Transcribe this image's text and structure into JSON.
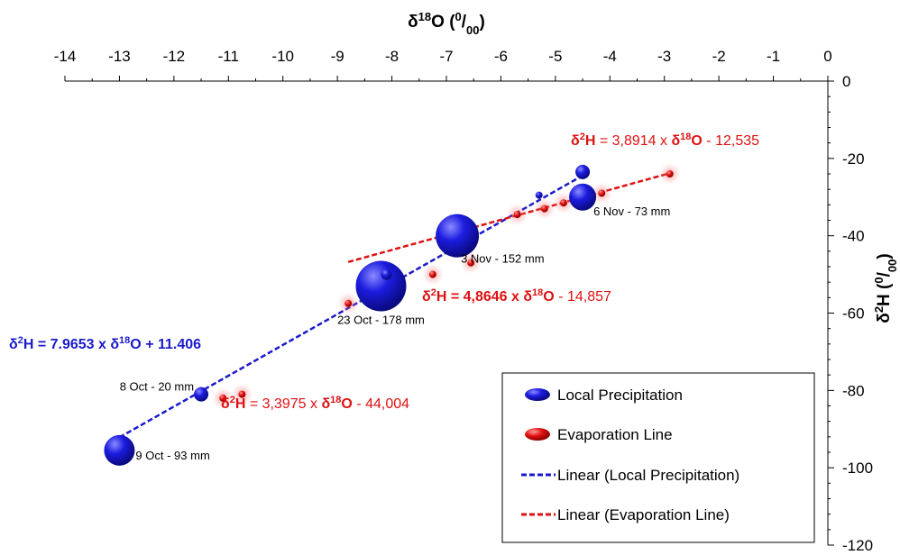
{
  "chart_data": {
    "type": "scatter",
    "x_axis": {
      "label_base": "δ",
      "label_sup": "18",
      "label_main": "O (",
      "label_unit_sup": "0",
      "label_slash": "/",
      "label_unit_sub": "00",
      "label_close": ")",
      "range": [
        -14,
        0
      ],
      "ticks": [
        -14,
        -13,
        -12,
        -11,
        -10,
        -9,
        -8,
        -7,
        -6,
        -5,
        -4,
        -3,
        -2,
        -1,
        0
      ]
    },
    "y_axis": {
      "label_base": "δ",
      "label_sup": "2",
      "label_main": "H (",
      "label_unit_sup": "0",
      "label_slash": "/",
      "label_unit_sub": "00",
      "label_close": ")",
      "range": [
        -120,
        0
      ],
      "ticks": [
        0,
        -20,
        -40,
        -60,
        -80,
        -100,
        -120
      ]
    },
    "series": [
      {
        "name": "Local Precipitation",
        "color": "#1a1acc",
        "points": [
          {
            "x": -13.0,
            "y": -95.5,
            "r": 17
          },
          {
            "x": -11.5,
            "y": -81.0,
            "r": 8
          },
          {
            "x": -8.2,
            "y": -53.0,
            "r": 28
          },
          {
            "x": -8.1,
            "y": -50.0,
            "r": 6
          },
          {
            "x": -6.8,
            "y": -40.0,
            "r": 24
          },
          {
            "x": -5.3,
            "y": -29.5,
            "r": 4
          },
          {
            "x": -4.5,
            "y": -30.0,
            "r": 15
          },
          {
            "x": -4.5,
            "y": -23.5,
            "r": 8
          }
        ]
      },
      {
        "name": "Evaporation Line",
        "color": "#dd1111",
        "points": [
          {
            "x": -11.1,
            "y": -82.0
          },
          {
            "x": -10.75,
            "y": -81.0
          },
          {
            "x": -8.8,
            "y": -57.5
          },
          {
            "x": -8.0,
            "y": -53.5
          },
          {
            "x": -7.25,
            "y": -50.0
          },
          {
            "x": -6.55,
            "y": -47.0
          },
          {
            "x": -5.7,
            "y": -34.5
          },
          {
            "x": -5.2,
            "y": -33.0
          },
          {
            "x": -4.85,
            "y": -31.5
          },
          {
            "x": -4.15,
            "y": -29.0
          },
          {
            "x": -2.9,
            "y": -24.0
          }
        ]
      }
    ],
    "trendlines": [
      {
        "name": "Linear (Local Precipitation)",
        "color": "#1a1acc",
        "x": [
          -13.0,
          -4.5
        ],
        "slope": 7.9653,
        "intercept": 11.406
      },
      {
        "name": "Linear (Evaporation Line)",
        "color": "#dd1111",
        "x": [
          -8.8,
          -2.9
        ],
        "slope": 3.8914,
        "intercept": -12.535
      }
    ],
    "point_labels": [
      {
        "text": "9 Oct - 93 mm",
        "x": -13.0,
        "y": -95.5
      },
      {
        "text": "8 Oct - 20 mm",
        "x": -11.5,
        "y": -81.0
      },
      {
        "text": "23 Oct - 178 mm",
        "x": -8.2,
        "y": -53.0
      },
      {
        "text": "3 Nov - 152 mm",
        "x": -6.8,
        "y": -40.0
      },
      {
        "text": "6 Nov - 73 mm",
        "x": -4.5,
        "y": -30.0
      }
    ],
    "equations": [
      {
        "lhs": "δ²H = 7.9653 x δ¹⁸O + 11.406",
        "color": "#1a1acc",
        "bold": true
      },
      {
        "lhs_bold": "δ²H",
        "rest": " = 3,8914 x ",
        "mid_bold": "δ¹⁸O",
        "tail": " - 12,535",
        "color": "#dd1111"
      },
      {
        "lhs_bold": "δ²H",
        "rest": " = 4,8646 x ",
        "mid_bold": "δ¹⁸O",
        "tail": " - 14,857",
        "color": "#dd1111"
      },
      {
        "lhs_bold": "δ²H",
        "rest": " = 3,3975 x ",
        "mid_bold": "δ¹⁸O",
        "tail": " - 44,004",
        "color": "#dd1111"
      }
    ],
    "legend": {
      "position": "bottom-right",
      "items": [
        {
          "label": "Local Precipitation",
          "kind": "marker",
          "color": "#1a1acc"
        },
        {
          "label": "Evaporation Line",
          "kind": "marker",
          "color": "#dd1111"
        },
        {
          "label": "Linear (Local Precipitation)",
          "kind": "dash",
          "color": "#1a1acc"
        },
        {
          "label": "Linear (Evaporation Line)",
          "kind": "dash",
          "color": "#dd1111"
        }
      ]
    }
  }
}
